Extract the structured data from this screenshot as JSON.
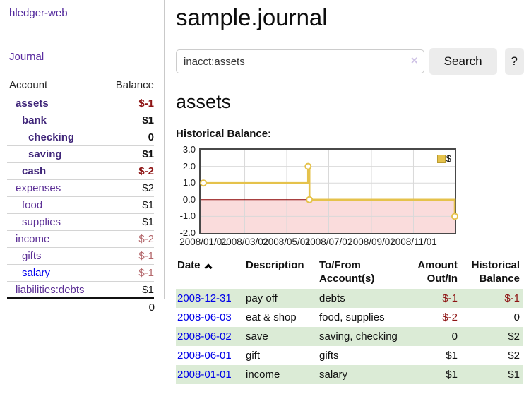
{
  "colors": {
    "accent_purple": "#5c2f96",
    "bold_purple": "#3f2579",
    "link_blue": "#0000ee",
    "negative_strong": "#8e1414",
    "negative_soft": "#b4686c",
    "row_stripe_green": "#dbebd6",
    "chart_line_gold": "#e5c24b",
    "chart_negative_region_pink": "#fadcdc",
    "chart_zero_line_red": "#8b0000"
  },
  "sidebar": {
    "brand": "hledger-web",
    "journal_label": "Journal",
    "accounts_table": {
      "header_account": "Account",
      "header_balance": "Balance",
      "rows": [
        {
          "name": "assets",
          "balance": "$-1",
          "depth": 1,
          "bold": true,
          "blue": false
        },
        {
          "name": "bank",
          "balance": "$1",
          "depth": 2,
          "bold": true,
          "blue": false
        },
        {
          "name": "checking",
          "balance": "0",
          "depth": 3,
          "bold": true,
          "blue": false
        },
        {
          "name": "saving",
          "balance": "$1",
          "depth": 3,
          "bold": true,
          "blue": false
        },
        {
          "name": "cash",
          "balance": "$-2",
          "depth": 2,
          "bold": true,
          "blue": false
        },
        {
          "name": "expenses",
          "balance": "$2",
          "depth": 1,
          "bold": false,
          "blue": false
        },
        {
          "name": "food",
          "balance": "$1",
          "depth": 2,
          "bold": false,
          "blue": false
        },
        {
          "name": "supplies",
          "balance": "$1",
          "depth": 2,
          "bold": false,
          "blue": false
        },
        {
          "name": "income",
          "balance": "$-2",
          "depth": 1,
          "bold": false,
          "blue": false
        },
        {
          "name": "gifts",
          "balance": "$-1",
          "depth": 2,
          "bold": false,
          "blue": false
        },
        {
          "name": "salary",
          "balance": "$-1",
          "depth": 2,
          "bold": false,
          "blue": true
        },
        {
          "name": "liabilities:debts",
          "balance": "$1",
          "depth": 1,
          "bold": false,
          "blue": false
        }
      ],
      "total": "0"
    }
  },
  "main": {
    "title": "sample.journal",
    "search": {
      "value": "inacct:assets",
      "clear_icon": "×",
      "button_label": "Search",
      "help_label": "?"
    },
    "account_heading": "assets"
  },
  "chart_data": {
    "type": "line",
    "title": "Historical Balance:",
    "step": true,
    "legend": {
      "label": "$",
      "position": "top-right"
    },
    "ylim": [
      -2,
      3
    ],
    "yticks": [
      "3.0",
      "2.0",
      "1.0",
      "0.0",
      "-1.0",
      "-2.0"
    ],
    "xticks": [
      "2008/01/01",
      "2008/03/01",
      "2008/05/01",
      "2008/07/01",
      "2008/09/01",
      "2008/11/01"
    ],
    "xrange": [
      "2008-01-01",
      "2008-12-31"
    ],
    "series": [
      {
        "name": "$",
        "color": "#e5c24b",
        "points": [
          {
            "x": "2008-01-01",
            "y": 1
          },
          {
            "x": "2008-06-01",
            "y": 2
          },
          {
            "x": "2008-06-03",
            "y": 0
          },
          {
            "x": "2008-12-31",
            "y": -1
          }
        ]
      }
    ],
    "negative_region_color": "#fadcdc",
    "zero_line_color": "#8b0000",
    "grid": true
  },
  "register": {
    "headers": [
      "Date",
      "Description",
      "To/From Account(s)",
      "Amount Out/In",
      "Historical Balance"
    ],
    "sort": "ascending",
    "rows": [
      {
        "date": "2008-12-31",
        "description": "pay off",
        "accounts": "debts",
        "amount": "$-1",
        "balance": "$-1"
      },
      {
        "date": "2008-06-03",
        "description": "eat & shop",
        "accounts": "food, supplies",
        "amount": "$-2",
        "balance": "0"
      },
      {
        "date": "2008-06-02",
        "description": "save",
        "accounts": "saving, checking",
        "amount": "0",
        "balance": "$2"
      },
      {
        "date": "2008-06-01",
        "description": "gift",
        "accounts": "gifts",
        "amount": "$1",
        "balance": "$2"
      },
      {
        "date": "2008-01-01",
        "description": "income",
        "accounts": "salary",
        "amount": "$1",
        "balance": "$1"
      }
    ]
  }
}
